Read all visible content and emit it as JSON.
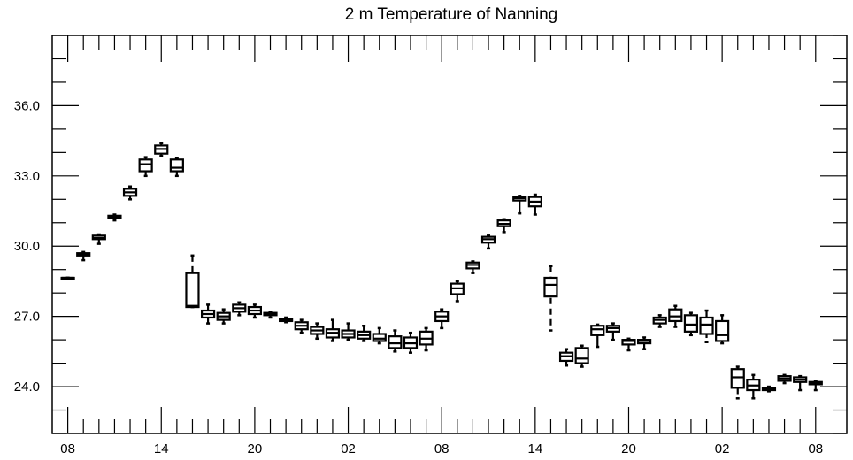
{
  "chart_data": {
    "type": "box",
    "title": "2 m Temperature of Nanning",
    "xlabel": "",
    "ylabel": "",
    "ylim": [
      22.0,
      39.0
    ],
    "y_ticks": [
      24.0,
      27.0,
      30.0,
      33.0,
      36.0
    ],
    "y_tick_labels": [
      "24.0",
      "27.0",
      "30.0",
      "33.0",
      "36.0"
    ],
    "x_tick_labels": [
      "08",
      "14",
      "20",
      "02",
      "08",
      "14",
      "20",
      "02",
      "08"
    ],
    "x_tick_hours": [
      0,
      6,
      12,
      18,
      24,
      30,
      36,
      42,
      48
    ],
    "x_range_hours": [
      -1,
      50
    ],
    "grid": false,
    "boxes": [
      {
        "hour": 0,
        "min": 28.65,
        "q1": 28.65,
        "median": 28.65,
        "q3": 28.65,
        "max": 28.65
      },
      {
        "hour": 1,
        "min": 29.4,
        "q1": 29.6,
        "median": 29.65,
        "q3": 29.7,
        "max": 29.75
      },
      {
        "hour": 2,
        "min": 30.1,
        "q1": 30.3,
        "median": 30.35,
        "q3": 30.45,
        "max": 30.5
      },
      {
        "hour": 3,
        "min": 31.1,
        "q1": 31.2,
        "median": 31.25,
        "q3": 31.3,
        "max": 31.35
      },
      {
        "hour": 4,
        "min": 32.0,
        "q1": 32.15,
        "median": 32.3,
        "q3": 32.45,
        "max": 32.55
      },
      {
        "hour": 5,
        "min": 33.0,
        "q1": 33.2,
        "median": 33.5,
        "q3": 33.7,
        "max": 33.8
      },
      {
        "hour": 6,
        "min": 33.85,
        "q1": 33.95,
        "median": 34.15,
        "q3": 34.3,
        "max": 34.4
      },
      {
        "hour": 7,
        "min": 33.0,
        "q1": 33.2,
        "median": 33.35,
        "q3": 33.7,
        "max": 33.75
      },
      {
        "hour": 8,
        "min": 27.4,
        "q1": 27.4,
        "median": 27.45,
        "q3": 28.85,
        "max": 29.6
      },
      {
        "hour": 9,
        "min": 26.7,
        "q1": 26.95,
        "median": 27.1,
        "q3": 27.25,
        "max": 27.5
      },
      {
        "hour": 10,
        "min": 26.7,
        "q1": 26.85,
        "median": 27.0,
        "q3": 27.15,
        "max": 27.3
      },
      {
        "hour": 11,
        "min": 27.05,
        "q1": 27.2,
        "median": 27.35,
        "q3": 27.5,
        "max": 27.6
      },
      {
        "hour": 12,
        "min": 26.95,
        "q1": 27.1,
        "median": 27.25,
        "q3": 27.4,
        "max": 27.5
      },
      {
        "hour": 13,
        "min": 26.95,
        "q1": 27.05,
        "median": 27.1,
        "q3": 27.15,
        "max": 27.2
      },
      {
        "hour": 14,
        "min": 26.75,
        "q1": 26.8,
        "median": 26.85,
        "q3": 26.9,
        "max": 26.95
      },
      {
        "hour": 15,
        "min": 26.3,
        "q1": 26.45,
        "median": 26.6,
        "q3": 26.75,
        "max": 26.85
      },
      {
        "hour": 16,
        "min": 26.05,
        "q1": 26.25,
        "median": 26.4,
        "q3": 26.55,
        "max": 26.7
      },
      {
        "hour": 17,
        "min": 25.95,
        "q1": 26.1,
        "median": 26.3,
        "q3": 26.45,
        "max": 26.85
      },
      {
        "hour": 18,
        "min": 26.0,
        "q1": 26.1,
        "median": 26.25,
        "q3": 26.4,
        "max": 26.7
      },
      {
        "hour": 19,
        "min": 25.95,
        "q1": 26.05,
        "median": 26.2,
        "q3": 26.35,
        "max": 26.6
      },
      {
        "hour": 20,
        "min": 25.85,
        "q1": 25.95,
        "median": 26.05,
        "q3": 26.25,
        "max": 26.5
      },
      {
        "hour": 21,
        "min": 25.5,
        "q1": 25.65,
        "median": 25.85,
        "q3": 26.15,
        "max": 26.4
      },
      {
        "hour": 22,
        "min": 25.45,
        "q1": 25.65,
        "median": 25.85,
        "q3": 26.1,
        "max": 26.3
      },
      {
        "hour": 23,
        "min": 25.55,
        "q1": 25.8,
        "median": 26.05,
        "q3": 26.35,
        "max": 26.5
      },
      {
        "hour": 24,
        "min": 26.5,
        "q1": 26.8,
        "median": 27.0,
        "q3": 27.2,
        "max": 27.3
      },
      {
        "hour": 25,
        "min": 27.65,
        "q1": 27.95,
        "median": 28.2,
        "q3": 28.4,
        "max": 28.5
      },
      {
        "hour": 26,
        "min": 28.85,
        "q1": 29.05,
        "median": 29.2,
        "q3": 29.3,
        "max": 29.35
      },
      {
        "hour": 27,
        "min": 29.9,
        "q1": 30.15,
        "median": 30.3,
        "q3": 30.4,
        "max": 30.45
      },
      {
        "hour": 28,
        "min": 30.6,
        "q1": 30.85,
        "median": 30.95,
        "q3": 31.1,
        "max": 31.15
      },
      {
        "hour": 29,
        "min": 31.4,
        "q1": 31.95,
        "median": 32.05,
        "q3": 32.1,
        "max": 32.15
      },
      {
        "hour": 30,
        "min": 31.35,
        "q1": 31.7,
        "median": 31.9,
        "q3": 32.1,
        "max": 32.2
      },
      {
        "hour": 31,
        "min": 26.4,
        "q1": 27.85,
        "median": 28.35,
        "q3": 28.65,
        "max": 29.15
      },
      {
        "hour": 32,
        "min": 24.9,
        "q1": 25.1,
        "median": 25.3,
        "q3": 25.45,
        "max": 25.6
      },
      {
        "hour": 33,
        "min": 24.85,
        "q1": 25.0,
        "median": 25.2,
        "q3": 25.65,
        "max": 25.75
      },
      {
        "hour": 34,
        "min": 25.7,
        "q1": 26.2,
        "median": 26.45,
        "q3": 26.6,
        "max": 26.65
      },
      {
        "hour": 35,
        "min": 26.0,
        "q1": 26.35,
        "median": 26.5,
        "q3": 26.6,
        "max": 26.7
      },
      {
        "hour": 36,
        "min": 25.55,
        "q1": 25.8,
        "median": 25.95,
        "q3": 26.0,
        "max": 26.05
      },
      {
        "hour": 37,
        "min": 25.6,
        "q1": 25.85,
        "median": 25.95,
        "q3": 26.0,
        "max": 26.1
      },
      {
        "hour": 38,
        "min": 26.55,
        "q1": 26.7,
        "median": 26.85,
        "q3": 26.95,
        "max": 27.05
      },
      {
        "hour": 39,
        "min": 26.55,
        "q1": 26.8,
        "median": 27.0,
        "q3": 27.3,
        "max": 27.45
      },
      {
        "hour": 40,
        "min": 26.2,
        "q1": 26.35,
        "median": 26.65,
        "q3": 27.05,
        "max": 27.15
      },
      {
        "hour": 41,
        "min": 25.9,
        "q1": 26.25,
        "median": 26.65,
        "q3": 26.95,
        "max": 27.25
      },
      {
        "hour": 42,
        "min": 25.85,
        "q1": 25.95,
        "median": 26.2,
        "q3": 26.8,
        "max": 27.05
      },
      {
        "hour": 43,
        "min": 23.5,
        "q1": 23.95,
        "median": 24.4,
        "q3": 24.75,
        "max": 24.85
      },
      {
        "hour": 44,
        "min": 23.5,
        "q1": 23.85,
        "median": 24.05,
        "q3": 24.3,
        "max": 24.5
      },
      {
        "hour": 45,
        "min": 23.8,
        "q1": 23.85,
        "median": 23.9,
        "q3": 23.95,
        "max": 24.0
      },
      {
        "hour": 46,
        "min": 24.15,
        "q1": 24.25,
        "median": 24.35,
        "q3": 24.45,
        "max": 24.5
      },
      {
        "hour": 47,
        "min": 23.85,
        "q1": 24.2,
        "median": 24.3,
        "q3": 24.4,
        "max": 24.45
      },
      {
        "hour": 48,
        "min": 23.85,
        "q1": 24.1,
        "median": 24.15,
        "q3": 24.2,
        "max": 24.25
      }
    ]
  }
}
